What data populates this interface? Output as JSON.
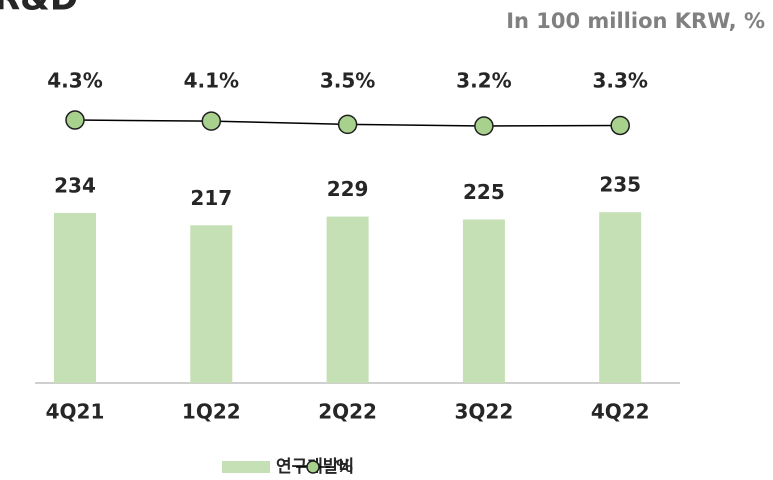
{
  "chart_data": {
    "type": "bar-line",
    "title": "R&D",
    "subtitle": "In 100 million KRW, %",
    "categories": [
      "4Q21",
      "1Q22",
      "2Q22",
      "3Q22",
      "4Q22"
    ],
    "series": [
      {
        "name": "연구개발비",
        "type": "bar",
        "color": "#c5e0b4",
        "values": [
          234,
          217,
          229,
          225,
          235
        ]
      },
      {
        "name": "%",
        "type": "line",
        "axis": "y2",
        "color": "#000000",
        "marker_color": "#a9d18e",
        "values": [
          4.3,
          4.1,
          3.5,
          3.2,
          3.3
        ],
        "value_labels": [
          "4.3%",
          "4.1%",
          "3.5%",
          "3.2%",
          "3.3%"
        ]
      }
    ],
    "ylim": [
      0,
      472
    ],
    "y2lim": [
      -44,
      19
    ],
    "legend": "bottom"
  }
}
